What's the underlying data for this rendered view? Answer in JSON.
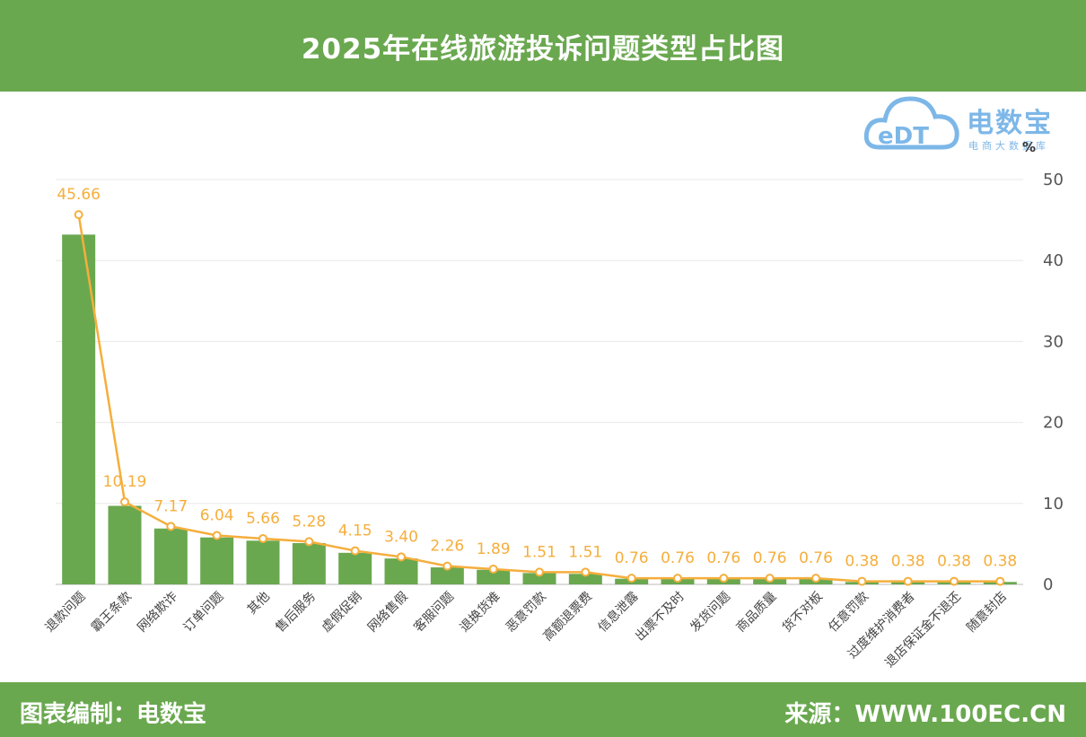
{
  "header": {
    "title": "2025年在线旅游投诉问题类型占比图"
  },
  "footer": {
    "left": "图表编制：电数宝",
    "right": "来源：WWW.100EC.CN"
  },
  "logo": {
    "name": "电数宝",
    "sub": "电商大数据库",
    "mark": "eDT"
  },
  "colors": {
    "bar": "#6aa84f",
    "line": "#f5ae3c",
    "header": "#6aa84f",
    "logo": "#7db7e8"
  },
  "chart_data": {
    "type": "bar",
    "title": "2025年在线旅游投诉问题类型占比图",
    "unit": "%",
    "ylim": [
      0,
      50
    ],
    "yticks": [
      0,
      10,
      20,
      30,
      40,
      50
    ],
    "categories": [
      "退款问题",
      "霸王条款",
      "网络欺诈",
      "订单问题",
      "其他",
      "售后服务",
      "虚假促销",
      "网络售假",
      "客服问题",
      "退换货难",
      "恶意罚款",
      "高额退票费",
      "信息泄露",
      "出票不及时",
      "发货问题",
      "商品质量",
      "货不对板",
      "任意罚款",
      "过度维护消费者",
      "退店保证金不退还",
      "随意封店"
    ],
    "series": [
      {
        "name": "占比",
        "type": "bar",
        "values": [
          43.2,
          9.7,
          6.9,
          5.8,
          5.4,
          5.1,
          3.9,
          3.2,
          2.1,
          1.8,
          1.4,
          1.3,
          0.7,
          0.7,
          0.7,
          0.7,
          0.7,
          0.3,
          0.3,
          0.3,
          0.3
        ]
      },
      {
        "name": "占比",
        "type": "line",
        "values": [
          45.66,
          10.19,
          7.17,
          6.04,
          5.66,
          5.28,
          4.15,
          3.4,
          2.26,
          1.89,
          1.51,
          1.51,
          0.76,
          0.76,
          0.76,
          0.76,
          0.76,
          0.38,
          0.38,
          0.38,
          0.38
        ],
        "labels": [
          "45.66",
          "10.19",
          "7.17",
          "6.04",
          "5.66",
          "5.28",
          "4.15",
          "3.40",
          "2.26",
          "1.89",
          "1.51",
          "1.51",
          "0.76",
          "0.76",
          "0.76",
          "0.76",
          "0.76",
          "0.38",
          "0.38",
          "0.38",
          "0.38"
        ]
      }
    ]
  }
}
